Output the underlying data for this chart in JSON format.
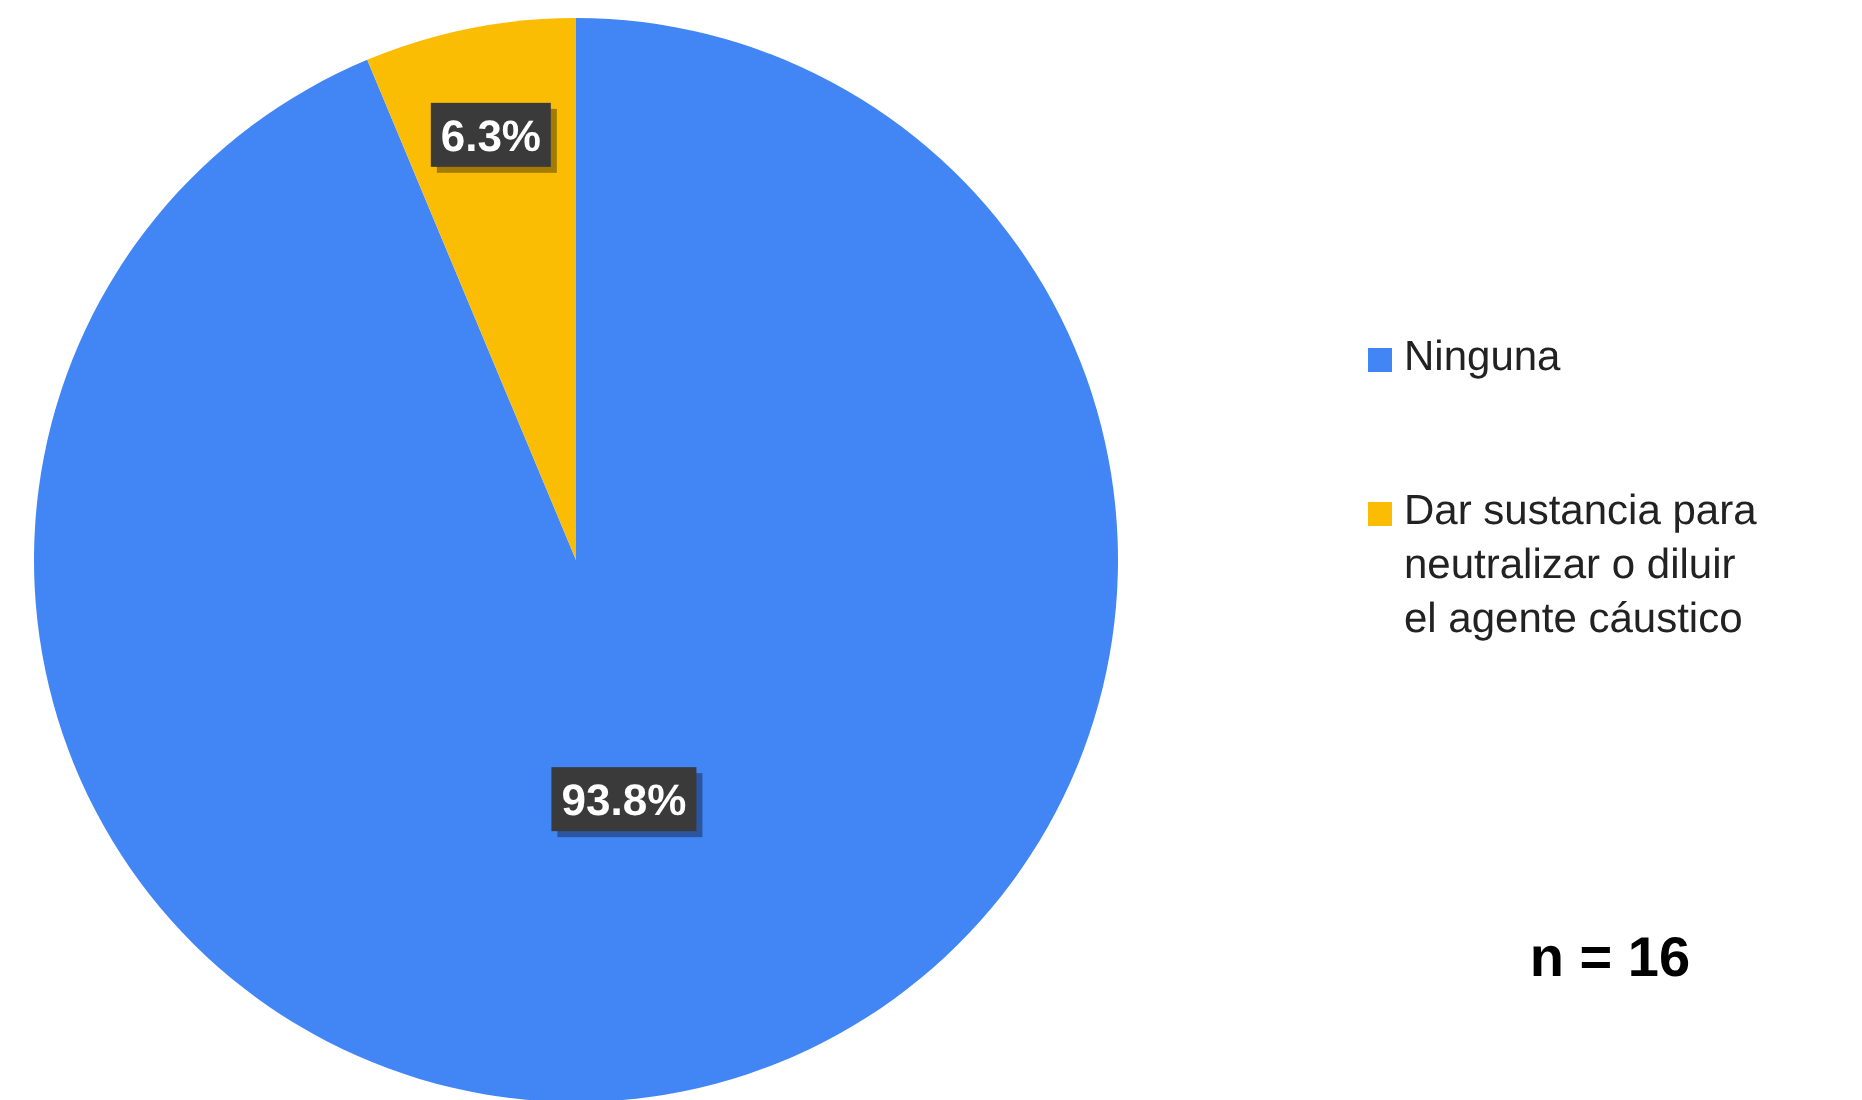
{
  "chart_data": {
    "type": "pie",
    "categories": [
      "Ninguna",
      "Dar sustancia para neutralizar o diluir el agente cáustico"
    ],
    "values": [
      93.8,
      6.3
    ],
    "colors": [
      "#4285f4",
      "#fbbc04"
    ],
    "value_labels": [
      "93.8%",
      "6.3%"
    ],
    "legend": "right",
    "annotations": [
      "n = 16"
    ]
  }
}
